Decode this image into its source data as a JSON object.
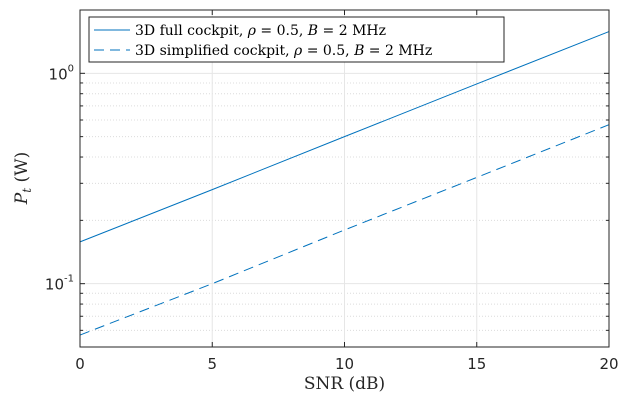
{
  "chart_data": {
    "type": "line",
    "xlabel": "SNR (dB)",
    "ylabel": {
      "symbol": "P",
      "subscript": "t",
      "unit": "(W)"
    },
    "xlim": [
      0,
      20
    ],
    "ylim": [
      0.05,
      2.0
    ],
    "yscale": "log",
    "grid": true,
    "minor_grid": true,
    "legend_position": "top-left",
    "x_ticks": [
      0,
      5,
      10,
      15,
      20
    ],
    "x_tick_labels": [
      "0",
      "5",
      "10",
      "15",
      "20"
    ],
    "y_ticks": [
      {
        "value": 0.1,
        "base": "10",
        "exp": "-1"
      },
      {
        "value": 1.0,
        "base": "10",
        "exp": "0"
      }
    ],
    "series": [
      {
        "name": "3D full cockpit, ρ = 0.5, B = 2 MHz",
        "legend": {
          "prefix": "3D full cockpit, ",
          "rho": "ρ",
          "rho_value": " = 0.5, ",
          "b": "B",
          "b_value": " = 2 MHz"
        },
        "style": "solid",
        "color": "#0072BD",
        "x": [
          0,
          5,
          10,
          15,
          20
        ],
        "y": [
          0.158,
          0.28,
          0.5,
          0.89,
          1.58
        ]
      },
      {
        "name": "3D simplified cockpit, ρ = 0.5, B = 2 MHz",
        "legend": {
          "prefix": "3D simplified cockpit, ",
          "rho": "ρ",
          "rho_value": " = 0.5, ",
          "b": "B",
          "b_value": " = 2 MHz"
        },
        "style": "dashed",
        "color": "#0072BD",
        "x": [
          0,
          5,
          10,
          15,
          20
        ],
        "y": [
          0.057,
          0.1,
          0.18,
          0.32,
          0.57
        ]
      }
    ]
  }
}
